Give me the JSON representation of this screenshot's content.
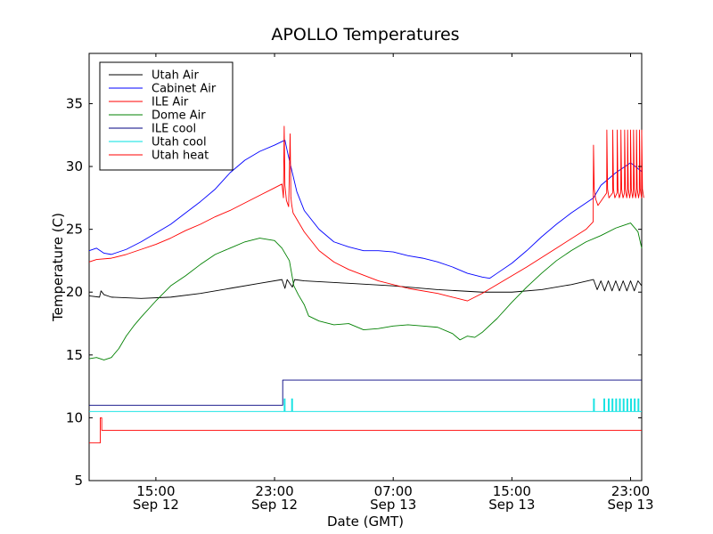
{
  "chart_data": {
    "type": "line",
    "title": "APOLLO Temperatures",
    "xlabel": "Date (GMT)",
    "ylabel": "Temperature (C)",
    "x_unit": "hours since Sep 12 00:00 GMT",
    "xlim": [
      10.5,
      47.75
    ],
    "ylim": [
      5,
      39
    ],
    "grid": false,
    "legend_position": "top-left",
    "x_ticks": [
      {
        "x": 15,
        "line1": "15:00",
        "line2": "Sep 12"
      },
      {
        "x": 23,
        "line1": "23:00",
        "line2": "Sep 12"
      },
      {
        "x": 31,
        "line1": "07:00",
        "line2": "Sep 13"
      },
      {
        "x": 39,
        "line1": "15:00",
        "line2": "Sep 13"
      },
      {
        "x": 47,
        "line1": "23:00",
        "line2": "Sep 13"
      }
    ],
    "y_ticks": [
      5,
      10,
      15,
      20,
      25,
      30,
      35
    ],
    "series": [
      {
        "name": "Utah Air",
        "color": "#000000",
        "x": [
          10.5,
          11.2,
          11.3,
          11.5,
          12,
          14,
          16,
          18,
          20,
          22,
          23.5,
          23.7,
          23.85,
          24.2,
          24.35,
          25,
          28,
          31,
          34,
          37,
          39,
          41,
          43,
          44.5,
          44.75,
          45.0,
          45.25,
          45.5,
          45.75,
          46.0,
          46.25,
          46.5,
          46.75,
          47.0,
          47.25,
          47.5,
          47.75
        ],
        "y": [
          19.7,
          19.6,
          20.1,
          19.8,
          19.6,
          19.5,
          19.6,
          19.9,
          20.3,
          20.7,
          21.0,
          20.3,
          21.0,
          20.4,
          21.0,
          20.9,
          20.7,
          20.5,
          20.2,
          20.0,
          20.0,
          20.2,
          20.6,
          21.0,
          20.2,
          20.9,
          20.1,
          20.9,
          20.1,
          20.9,
          20.1,
          20.9,
          20.1,
          20.9,
          20.1,
          20.9,
          20.5
        ]
      },
      {
        "name": "Cabinet Air",
        "color": "#0000ff",
        "x": [
          10.5,
          11,
          11.5,
          12,
          13,
          14,
          15,
          16,
          17,
          18,
          19,
          20,
          21,
          22,
          23,
          23.7,
          23.9,
          24.2,
          24.5,
          25,
          26,
          27,
          28,
          29,
          30,
          31,
          32,
          33,
          34,
          35,
          36,
          37,
          37.5,
          38,
          39,
          40,
          41,
          42,
          43,
          44,
          44.5,
          45,
          46,
          47,
          47.75
        ],
        "y": [
          23.3,
          23.5,
          23.1,
          23.0,
          23.4,
          24.0,
          24.7,
          25.4,
          26.3,
          27.2,
          28.2,
          29.5,
          30.5,
          31.2,
          31.7,
          32.1,
          31.0,
          29.5,
          28.0,
          26.5,
          25.0,
          24.0,
          23.6,
          23.3,
          23.3,
          23.2,
          22.9,
          22.7,
          22.4,
          22.0,
          21.5,
          21.2,
          21.1,
          21.5,
          22.3,
          23.3,
          24.4,
          25.4,
          26.3,
          27.1,
          27.5,
          28.5,
          29.5,
          30.3,
          29.6
        ]
      },
      {
        "name": "ILE Air",
        "color": "#ff0000",
        "x": [
          10.5,
          11,
          12,
          13,
          14,
          15,
          16,
          17,
          18,
          19,
          20,
          21,
          22,
          23,
          23.5,
          23.6,
          23.65,
          23.7,
          23.8,
          23.95,
          24.05,
          24.1,
          24.15,
          24.25,
          25,
          26,
          27,
          28,
          30,
          32,
          34,
          35,
          36,
          37,
          38,
          40,
          42,
          44,
          44.48,
          44.5,
          44.55,
          44.65,
          44.8
        ],
        "y": [
          22.4,
          22.6,
          22.7,
          23.0,
          23.4,
          23.8,
          24.3,
          24.9,
          25.4,
          26.0,
          26.5,
          27.1,
          27.7,
          28.3,
          28.6,
          27.5,
          33.2,
          28.5,
          27.3,
          26.8,
          32.6,
          27.6,
          27.0,
          26.3,
          24.8,
          23.3,
          22.4,
          21.8,
          20.9,
          20.3,
          19.9,
          19.6,
          19.3,
          19.9,
          20.6,
          22.0,
          23.5,
          25.0,
          25.6,
          31.7,
          28.2,
          27.4,
          26.9
        ],
        "spikes": [
          45.4,
          45.8,
          46.1,
          46.35,
          46.6,
          46.8,
          47.0,
          47.2,
          47.4,
          47.6,
          47.75
        ],
        "spike_peak": 32.9,
        "spike_base": 27.5
      },
      {
        "name": "Dome Air",
        "color": "#008000",
        "x": [
          10.5,
          11,
          11.5,
          12,
          12.5,
          13,
          13.5,
          14,
          15,
          16,
          17,
          18,
          19,
          20,
          21,
          22,
          23,
          23.5,
          24,
          24.3,
          24.6,
          25,
          25.3,
          26,
          27,
          28,
          29,
          30,
          31,
          32,
          33,
          34,
          35,
          35.5,
          36,
          36.5,
          37,
          38,
          39,
          40,
          41,
          42,
          43,
          44,
          45,
          46,
          47,
          47.5,
          47.75
        ],
        "y": [
          14.7,
          14.8,
          14.6,
          14.8,
          15.5,
          16.5,
          17.3,
          18.0,
          19.3,
          20.5,
          21.3,
          22.2,
          23.0,
          23.5,
          24.0,
          24.3,
          24.1,
          23.5,
          22.5,
          20.5,
          19.8,
          19.0,
          18.1,
          17.7,
          17.4,
          17.5,
          17.0,
          17.1,
          17.3,
          17.4,
          17.3,
          17.2,
          16.7,
          16.2,
          16.5,
          16.4,
          16.8,
          17.9,
          19.2,
          20.4,
          21.5,
          22.5,
          23.3,
          24.0,
          24.5,
          25.1,
          25.5,
          24.8,
          23.5
        ]
      },
      {
        "name": "ILE cool",
        "color": "#000080",
        "x": [
          10.5,
          23.55,
          23.55,
          47.75
        ],
        "y": [
          11.0,
          11.0,
          13.0,
          13.0
        ]
      },
      {
        "name": "Utah cool",
        "color": "#00e0e0",
        "x": [
          10.5,
          47.75
        ],
        "y": [
          10.5,
          10.5
        ],
        "pulses": [
          23.65,
          24.15,
          44.5,
          45.2,
          45.5,
          45.75,
          46.0,
          46.25,
          46.5,
          46.75,
          47.0,
          47.25,
          47.5
        ],
        "pulse_peak": 11.5
      },
      {
        "name": "Utah heat",
        "color": "#ff0000",
        "x": [
          10.5,
          11.25,
          11.25,
          11.35,
          11.35,
          47.75
        ],
        "y": [
          8.0,
          8.0,
          10.0,
          10.0,
          9.0,
          9.0
        ]
      }
    ]
  }
}
